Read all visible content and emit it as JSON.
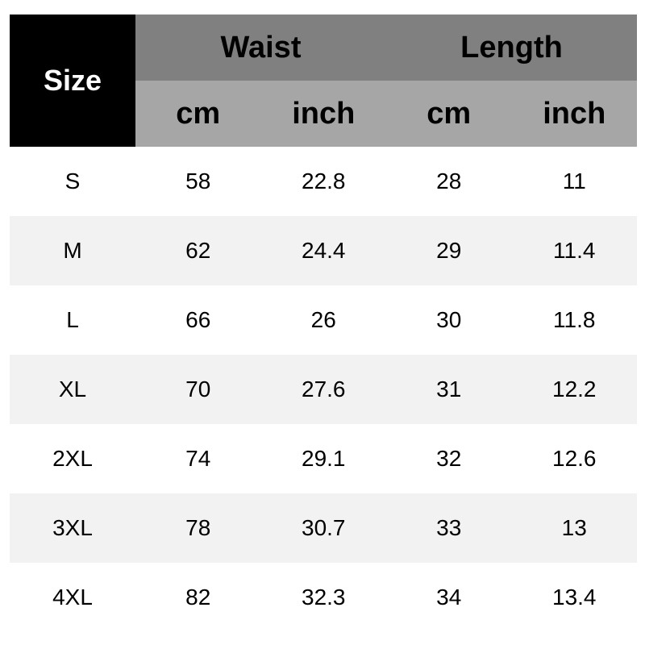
{
  "header": {
    "size": "Size",
    "groups": [
      "Waist",
      "Length"
    ],
    "units": [
      "cm",
      "inch",
      "cm",
      "inch"
    ]
  },
  "rows": [
    [
      "S",
      "58",
      "22.8",
      "28",
      "11"
    ],
    [
      "M",
      "62",
      "24.4",
      "29",
      "11.4"
    ],
    [
      "L",
      "66",
      "26",
      "30",
      "11.8"
    ],
    [
      "XL",
      "70",
      "27.6",
      "31",
      "12.2"
    ],
    [
      "2XL",
      "74",
      "29.1",
      "32",
      "12.6"
    ],
    [
      "3XL",
      "78",
      "30.7",
      "33",
      "13"
    ],
    [
      "4XL",
      "82",
      "32.3",
      "34",
      "13.4"
    ]
  ],
  "colors": {
    "size_header": "#000000",
    "group_header": "#808080",
    "unit_header": "#a6a6a6",
    "alt_row": "#f2f2f2"
  }
}
